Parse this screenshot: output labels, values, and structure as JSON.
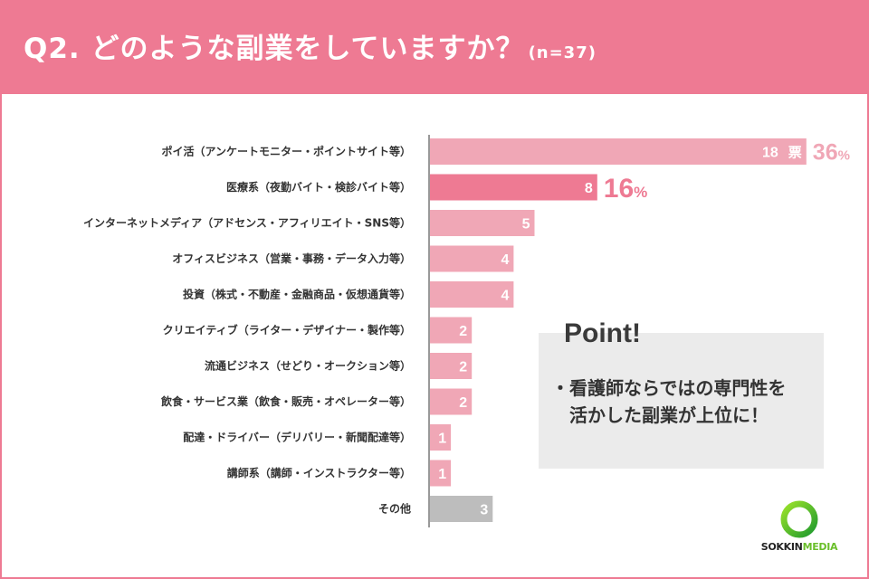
{
  "header": {
    "title": "Q2. どのような副業をしていますか？",
    "sample": "(n=37)"
  },
  "chart_data": {
    "type": "bar",
    "orientation": "horizontal",
    "value_unit": "票",
    "categories": [
      "ポイ活（アンケートモニター・ポイントサイト等）",
      "医療系（夜勤バイト・検診バイト等）",
      "インターネットメディア（アドセンス・アフィリエイト・SNS等）",
      "オフィスビジネス（営業・事務・データ入力等）",
      "投資（株式・不動産・金融商品・仮想通貨等）",
      "クリエイティブ（ライター・デザイナー・製作等）",
      "流通ビジネス（せどり・オークション等）",
      "飲食・サービス業（飲食・販売・オペレーター等）",
      "配達・ドライバー（デリバリー・新聞配達等）",
      "講師系（講師・インストラクター等）",
      "その他"
    ],
    "values": [
      18,
      8,
      5,
      4,
      4,
      2,
      2,
      2,
      1,
      1,
      3
    ],
    "percent_labels": [
      {
        "index": 0,
        "value": "36",
        "unit": "%"
      },
      {
        "index": 1,
        "value": "16",
        "unit": "%"
      }
    ],
    "colors": {
      "default": "#f0a7b6",
      "highlight": "#ee7a93",
      "other": "#bdbdbd",
      "percent_first": "#f0a7b6",
      "percent_second": "#ee7a93"
    }
  },
  "point": {
    "title": "Point!",
    "lines": [
      "・看護師ならではの専門性を",
      "　活かした副業が上位に！"
    ]
  },
  "logo": {
    "text_a": "SOKKIN",
    "text_b": "MEDIA"
  }
}
